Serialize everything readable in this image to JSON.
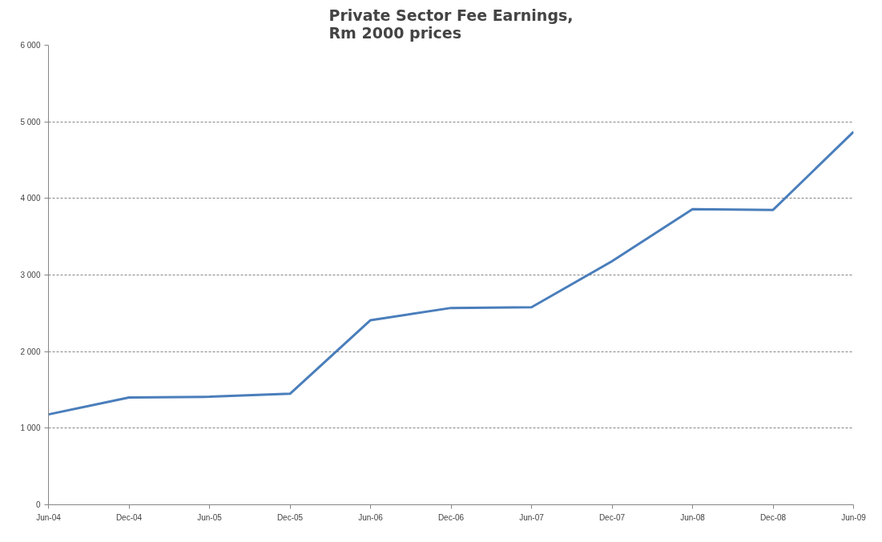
{
  "chart_data": {
    "type": "line",
    "title": "Private Sector Fee Earnings,\nRm 2000 prices",
    "categories": [
      "Jun-04",
      "Dec-04",
      "Jun-05",
      "Dec-05",
      "Jun-06",
      "Dec-06",
      "Jun-07",
      "Dec-07",
      "Jun-08",
      "Dec-08",
      "Jun-09"
    ],
    "series": [
      {
        "color": "#4a7ebb",
        "values": [
          1180,
          1400,
          1410,
          1450,
          2410,
          2570,
          2580,
          3180,
          3860,
          3850,
          4870
        ]
      }
    ],
    "ylim": [
      0,
      6000
    ],
    "yticks": [
      {
        "value": 0,
        "label": "0"
      },
      {
        "value": 1000,
        "label": "1 000"
      },
      {
        "value": 2000,
        "label": "2 000"
      },
      {
        "value": 3000,
        "label": "3 000"
      },
      {
        "value": 4000,
        "label": "4 000"
      },
      {
        "value": 5000,
        "label": "5 000"
      },
      {
        "value": 6000,
        "label": "6 000"
      }
    ],
    "grid": "y",
    "marker": "none",
    "line_style": "solid"
  }
}
